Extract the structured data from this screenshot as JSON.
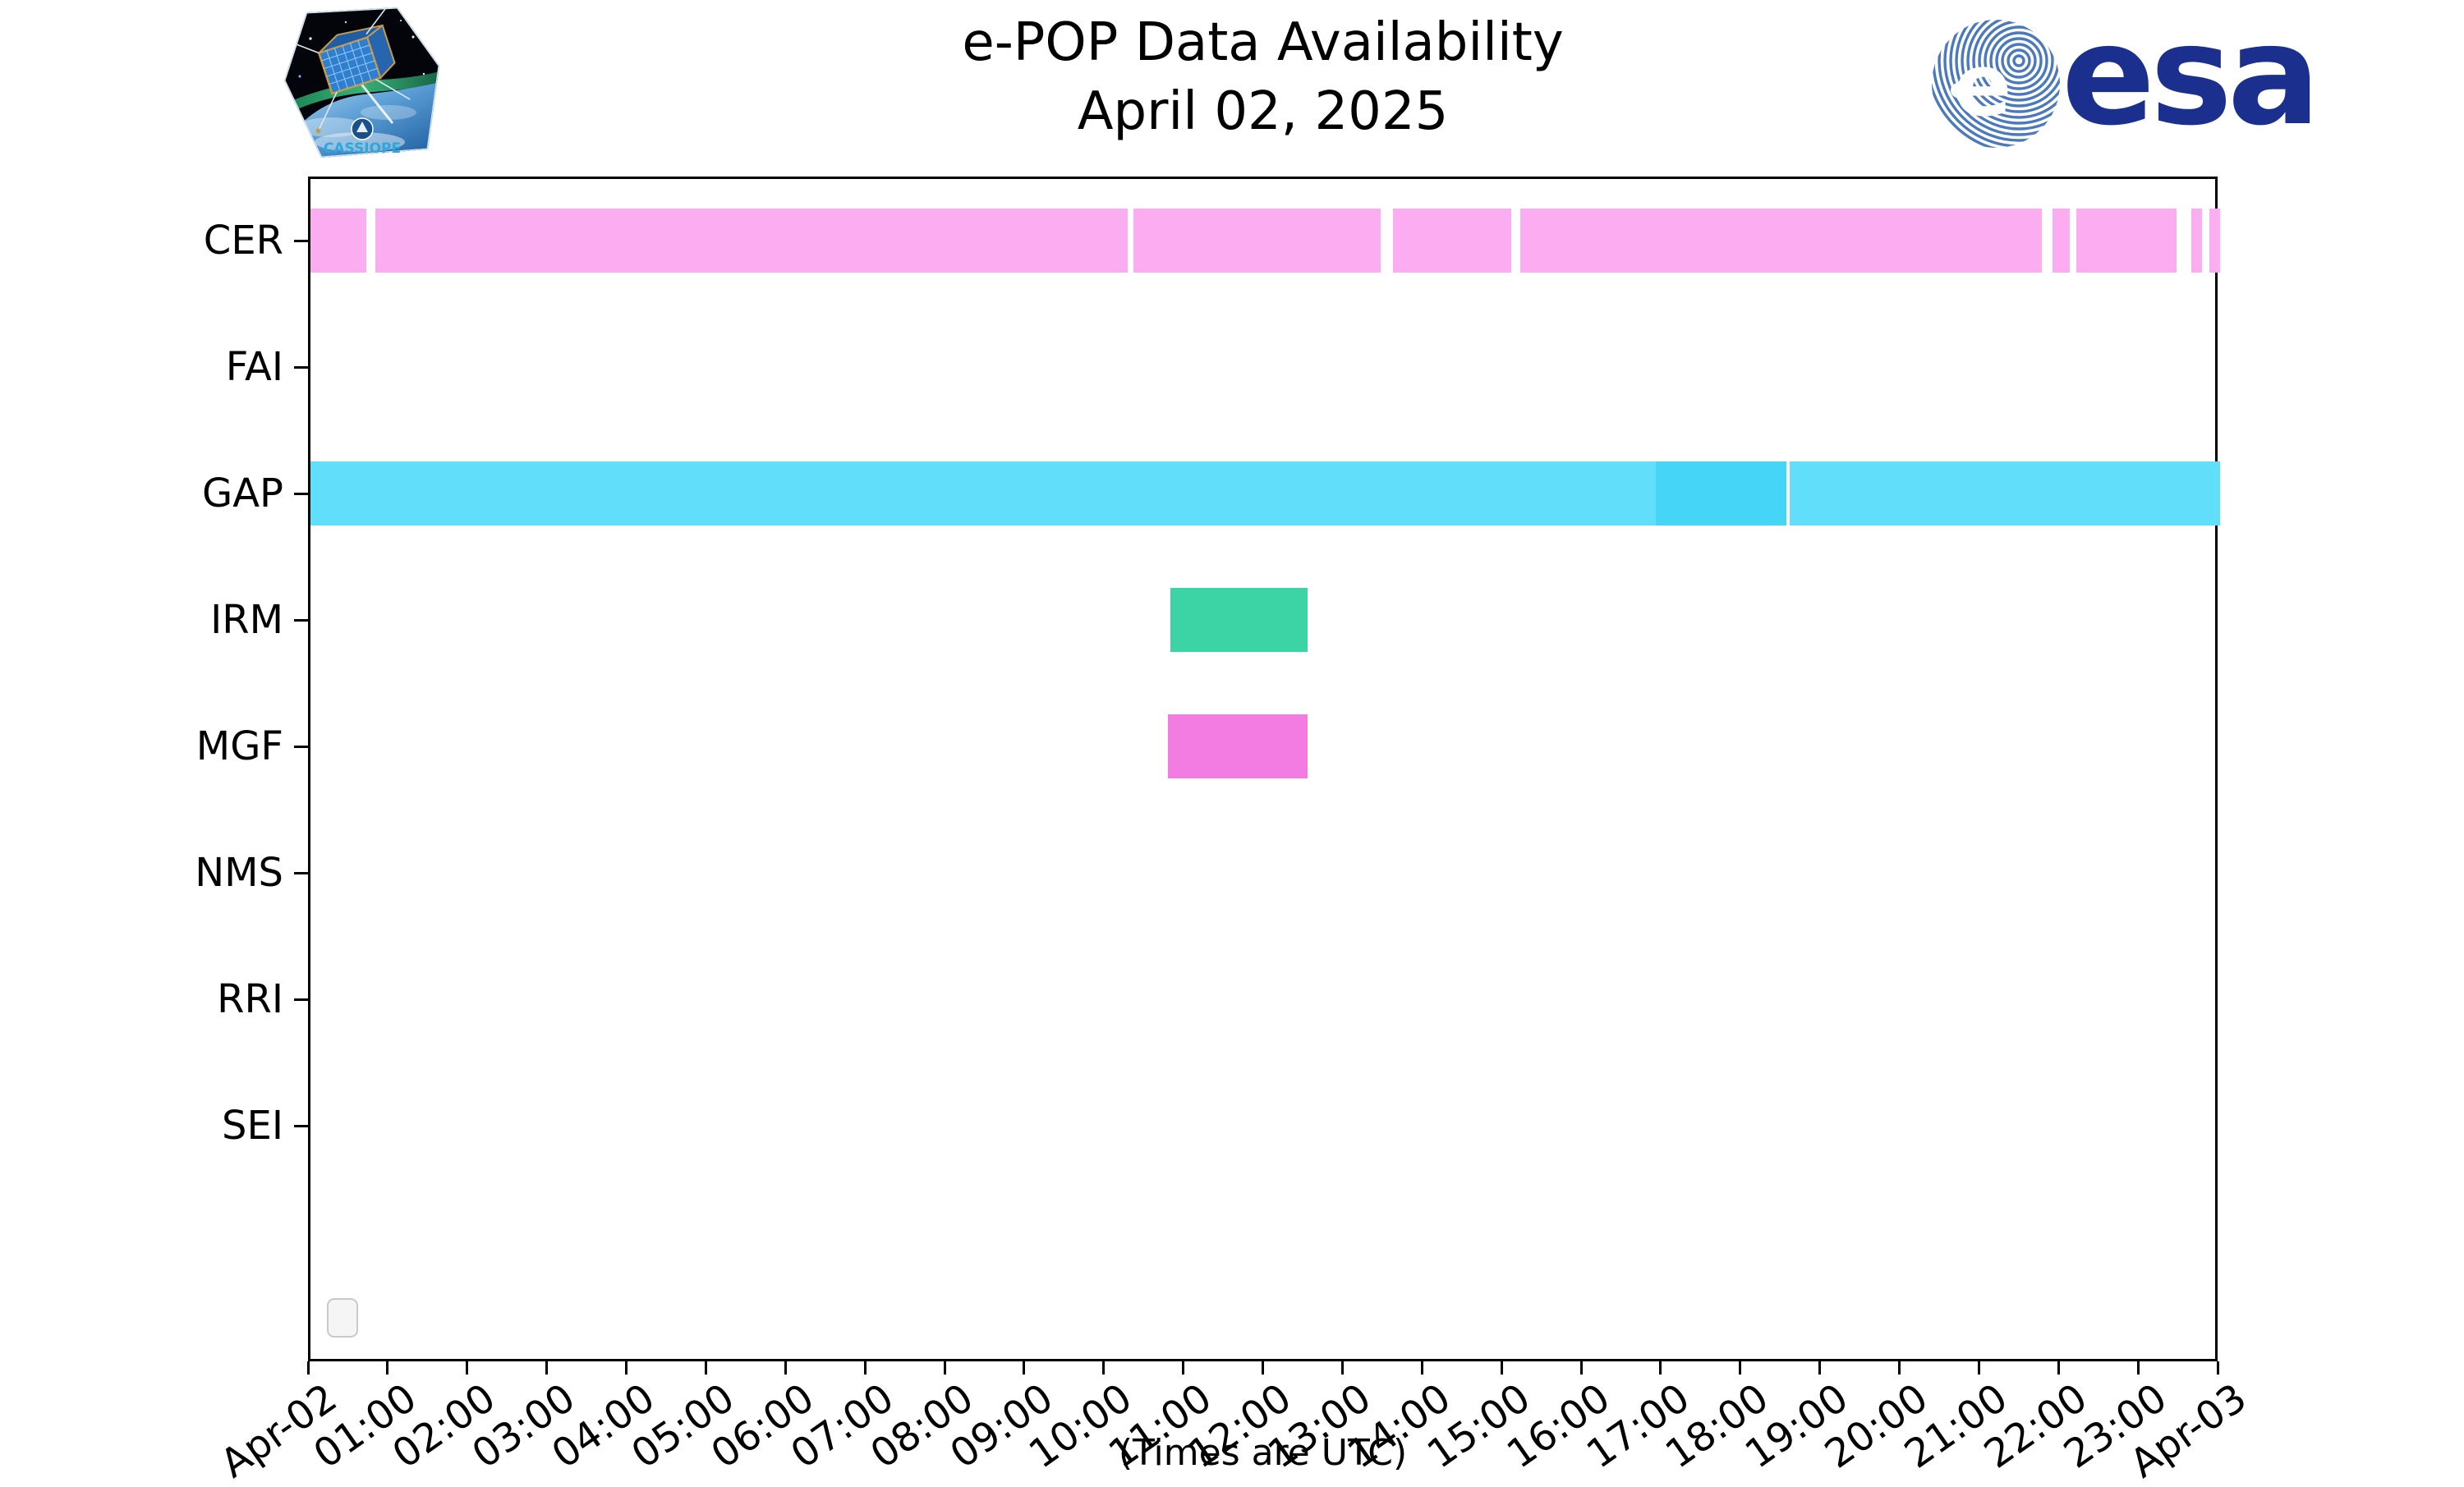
{
  "title": {
    "line1": "e-POP Data Availability",
    "line2": "April 02, 2025"
  },
  "footer": "(Times are UTC)",
  "logos": {
    "cassiope": {
      "label": "CASSIOPE"
    },
    "esa": {
      "label": "esa"
    }
  },
  "chart_data": {
    "type": "bar",
    "subtype": "horizontal-availability-timeline",
    "title": "e-POP Data Availability",
    "subtitle": "April 02, 2025",
    "xlabel": "(Times are UTC)",
    "x_unit": "hours (UTC)",
    "xlim": [
      0,
      24
    ],
    "grid": false,
    "legend_position": "bottom-left-empty",
    "x_tick_labels": [
      "Apr-02",
      "01:00",
      "02:00",
      "03:00",
      "04:00",
      "05:00",
      "06:00",
      "07:00",
      "08:00",
      "09:00",
      "10:00",
      "11:00",
      "12:00",
      "13:00",
      "14:00",
      "15:00",
      "16:00",
      "17:00",
      "18:00",
      "19:00",
      "20:00",
      "21:00",
      "22:00",
      "23:00",
      "Apr-03"
    ],
    "rows": [
      {
        "name": "CER",
        "segments": [
          {
            "start": 0.0,
            "end": 0.7,
            "color": "#fcadf2"
          },
          {
            "start": 0.82,
            "end": 10.27,
            "color": "#fcadf2"
          },
          {
            "start": 10.34,
            "end": 13.45,
            "color": "#fcadf2"
          },
          {
            "start": 13.6,
            "end": 15.09,
            "color": "#fcadf2"
          },
          {
            "start": 15.2,
            "end": 21.76,
            "color": "#fcadf2"
          },
          {
            "start": 21.89,
            "end": 22.11,
            "color": "#fcadf2"
          },
          {
            "start": 22.19,
            "end": 23.45,
            "color": "#fcadf2"
          },
          {
            "start": 23.64,
            "end": 23.77,
            "color": "#fcadf2"
          },
          {
            "start": 23.87,
            "end": 24.0,
            "color": "#fcadf2"
          }
        ]
      },
      {
        "name": "FAI",
        "segments": []
      },
      {
        "name": "GAP",
        "segments": [
          {
            "start": 0.0,
            "end": 16.91,
            "color": "#61def9"
          },
          {
            "start": 16.91,
            "end": 18.55,
            "color": "#45d5f7"
          },
          {
            "start": 18.59,
            "end": 24.0,
            "color": "#61def9"
          }
        ]
      },
      {
        "name": "IRM",
        "segments": [
          {
            "start": 10.81,
            "end": 12.53,
            "color": "#3cd3a5"
          }
        ]
      },
      {
        "name": "MGF",
        "segments": [
          {
            "start": 10.78,
            "end": 12.53,
            "color": "#f27ce2"
          }
        ]
      },
      {
        "name": "NMS",
        "segments": []
      },
      {
        "name": "RRI",
        "segments": []
      },
      {
        "name": "SEI",
        "segments": []
      }
    ]
  }
}
